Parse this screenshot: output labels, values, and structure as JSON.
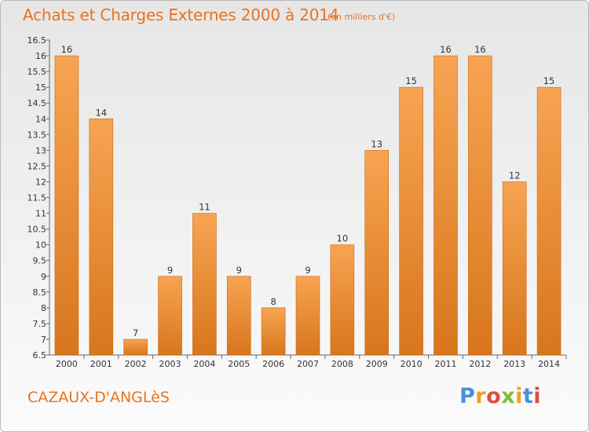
{
  "header": {
    "title": "Achats et Charges Externes 2000 à 2014",
    "subtitle": "(en milliers d'€)"
  },
  "footer": {
    "commune": "CAZAUX-D'ANGLèS",
    "logo_text": "Proxiti"
  },
  "colors": {
    "bar_light": "#f7a452",
    "bar_dark": "#d8761d",
    "text_accent": "#e8731f"
  },
  "chart_data": {
    "type": "bar",
    "title": "Achats et Charges Externes 2000 à 2014",
    "subtitle": "(en milliers d'€)",
    "xlabel": "",
    "ylabel": "",
    "categories": [
      "2000",
      "2001",
      "2002",
      "2003",
      "2004",
      "2005",
      "2006",
      "2007",
      "2008",
      "2009",
      "2010",
      "2011",
      "2012",
      "2013",
      "2014"
    ],
    "values": [
      16,
      14,
      7,
      9,
      11,
      9,
      8,
      9,
      10,
      13,
      15,
      16,
      16,
      12,
      15
    ],
    "ylim": [
      6.5,
      16.5
    ],
    "yticks": [
      6.5,
      7,
      7.5,
      8,
      8.5,
      9,
      9.5,
      10,
      10.5,
      11,
      11.5,
      12,
      12.5,
      13,
      13.5,
      14,
      14.5,
      15,
      15.5,
      16,
      16.5
    ],
    "ytick_labels": [
      "6.5",
      "7",
      "7.5",
      "8",
      "8.5",
      "9",
      "9.5",
      "10",
      "10.5",
      "11",
      "11.5",
      "12",
      "12.5",
      "13",
      "13.5",
      "14",
      "14.5",
      "15",
      "15.5",
      "16",
      "16.5"
    ],
    "grid": false,
    "legend": "none"
  }
}
